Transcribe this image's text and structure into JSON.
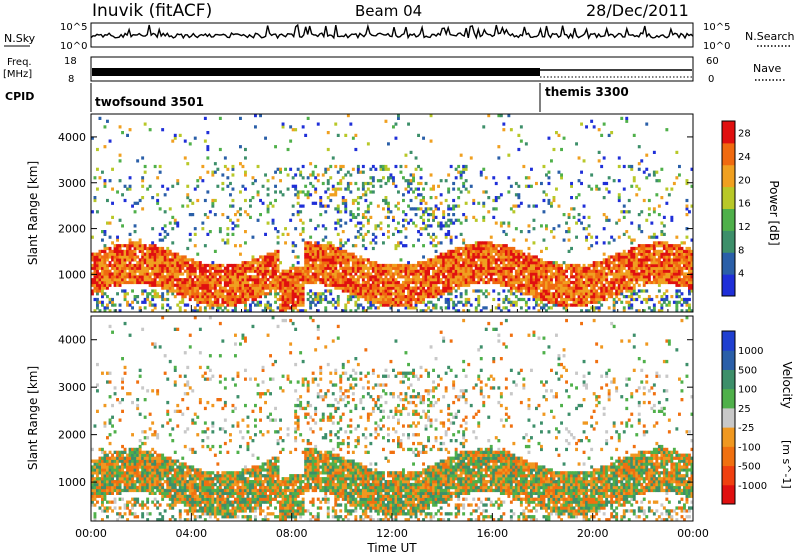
{
  "header": {
    "station": "Inuvik (fitACF)",
    "beam": "Beam 04",
    "date": "28/Dec/2011"
  },
  "strip": {
    "nsky_label": "N.Sky",
    "nsky_ticks": [
      "10^5",
      "10^0"
    ],
    "nsearch_label": "N.Search",
    "freq_label": "Freq.",
    "freq_unit": "[MHz]",
    "freq_ticks": [
      "18",
      "8"
    ],
    "nave_label": "Nave",
    "nave_ticks": [
      "60",
      "0"
    ],
    "cpid_label": "CPID",
    "cpid_segments": [
      {
        "name": "twofsound 3501",
        "start_h": 0,
        "end_h": 18
      },
      {
        "name": "themis 3300",
        "start_h": 18,
        "end_h": 24
      }
    ]
  },
  "colors": {
    "power": [
      "#1f2fd8",
      "#2a5fa8",
      "#3d8f6a",
      "#4fb04a",
      "#b8c828",
      "#f0a020",
      "#f06a10",
      "#e01010"
    ],
    "velocity": [
      "#e01010",
      "#f04010",
      "#f07010",
      "#f09820",
      "#c8c8c8",
      "#4fb04a",
      "#3d8f6a",
      "#2a5fa8",
      "#1f3fd0"
    ],
    "ground_scatter": "#b4b4b4"
  },
  "chart_data": [
    {
      "type": "heatmap",
      "ylabel": "Slant Range [km]",
      "ylim": [
        180,
        4500
      ],
      "yticks": [
        1000,
        2000,
        3000,
        4000
      ],
      "xlim": [
        0,
        24
      ],
      "colorbar": {
        "label": "Power [dB]",
        "range": [
          0,
          30
        ],
        "ticks": [
          4,
          8,
          12,
          16,
          20,
          24,
          28
        ]
      },
      "grid": false
    },
    {
      "type": "heatmap",
      "ylabel": "Slant Range [km]",
      "ylim": [
        180,
        4500
      ],
      "yticks": [
        1000,
        2000,
        3000,
        4000
      ],
      "xlim": [
        0,
        24
      ],
      "xlabel": "Time UT",
      "xticks": [
        "00:00",
        "04:00",
        "08:00",
        "12:00",
        "16:00",
        "20:00",
        "00:00"
      ],
      "colorbar": {
        "label": "Velocity",
        "unit": "[m s^-1]",
        "ticks": [
          "1000",
          "500",
          "100",
          "25",
          "-25",
          "-100",
          "-500",
          "-1000"
        ]
      },
      "grid": false
    }
  ]
}
